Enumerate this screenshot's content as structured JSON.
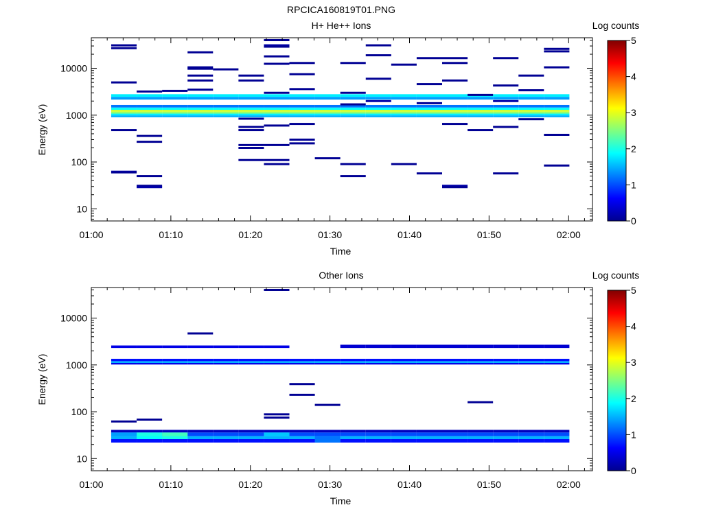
{
  "figure": {
    "title": "RPCICA160819T01.PNG"
  },
  "colorbar": {
    "label": "Log counts",
    "ticks": [
      "0",
      "1",
      "2",
      "3",
      "4",
      "5"
    ],
    "range": [
      0,
      5
    ]
  },
  "chart_data": [
    {
      "type": "heatmap",
      "title": "H+ He++ Ions",
      "xlabel": "Time",
      "ylabel": "Energy (eV)",
      "x_ticks": [
        "01:00",
        "01:10",
        "01:20",
        "01:30",
        "01:40",
        "01:50",
        "02:00"
      ],
      "xlim_minutes": [
        0,
        63
      ],
      "y_ticks": [
        "10",
        "100",
        "1000",
        "10000"
      ],
      "y_scale": "log",
      "ylim": [
        5.5,
        45000
      ],
      "time_bins": [
        [
          2.5,
          5.7
        ],
        [
          5.7,
          8.9
        ],
        [
          8.9,
          12.1
        ],
        [
          12.1,
          15.3
        ],
        [
          15.3,
          18.5
        ],
        [
          18.5,
          21.7
        ],
        [
          21.7,
          24.9
        ],
        [
          24.9,
          28.1
        ],
        [
          28.1,
          31.3
        ],
        [
          31.3,
          34.5
        ],
        [
          34.5,
          37.7
        ],
        [
          37.7,
          40.9
        ],
        [
          40.9,
          44.1
        ],
        [
          44.1,
          47.3
        ],
        [
          47.3,
          50.5
        ],
        [
          50.5,
          53.7
        ],
        [
          53.7,
          56.9
        ],
        [
          56.9,
          60.1
        ]
      ],
      "bands": [
        {
          "energy": [
            2450,
            2800
          ],
          "value": 1.8
        },
        {
          "energy": [
            2150,
            2450
          ],
          "value": 1.4
        },
        {
          "energy": [
            1450,
            1650
          ],
          "value": 1.2
        },
        {
          "energy": [
            1300,
            1450
          ],
          "value": 1.9
        },
        {
          "energy": [
            1180,
            1300
          ],
          "value": 2.9
        },
        {
          "energy": [
            1080,
            1180
          ],
          "value": 2.6
        },
        {
          "energy": [
            990,
            1080
          ],
          "value": 1.8
        },
        {
          "energy": [
            900,
            990
          ],
          "value": 1.5
        }
      ],
      "sparse": [
        [
          0,
          31000,
          0.1
        ],
        [
          0,
          27000,
          0.1
        ],
        [
          0,
          5000,
          0.1
        ],
        [
          0,
          480,
          0.1
        ],
        [
          0,
          62,
          0.2
        ],
        [
          0,
          60,
          0.1
        ],
        [
          1,
          3200,
          0.1
        ],
        [
          1,
          360,
          0.1
        ],
        [
          1,
          270,
          0.1
        ],
        [
          1,
          50,
          0.1
        ],
        [
          1,
          31,
          0.1
        ],
        [
          1,
          29,
          0.2
        ],
        [
          2,
          3300,
          0.1
        ],
        [
          3,
          22000,
          0.1
        ],
        [
          3,
          10500,
          0.1
        ],
        [
          3,
          9800,
          0.1
        ],
        [
          3,
          7000,
          0.1
        ],
        [
          3,
          5500,
          0.1
        ],
        [
          3,
          3500,
          0.1
        ],
        [
          4,
          9500,
          0.1
        ],
        [
          5,
          7000,
          0.1
        ],
        [
          5,
          5500,
          0.1
        ],
        [
          5,
          840,
          0.1
        ],
        [
          5,
          560,
          0.1
        ],
        [
          5,
          480,
          0.1
        ],
        [
          5,
          230,
          0.1
        ],
        [
          5,
          200,
          0.1
        ],
        [
          5,
          110,
          0.1
        ],
        [
          6,
          40000,
          0.1
        ],
        [
          6,
          31000,
          0.2
        ],
        [
          6,
          29000,
          0.1
        ],
        [
          6,
          18000,
          0.1
        ],
        [
          6,
          12500,
          0.1
        ],
        [
          6,
          3000,
          0.1
        ],
        [
          6,
          600,
          0.1
        ],
        [
          6,
          230,
          0.1
        ],
        [
          6,
          110,
          0.1
        ],
        [
          6,
          90,
          0.1
        ],
        [
          7,
          13000,
          0.1
        ],
        [
          7,
          7500,
          0.1
        ],
        [
          7,
          3600,
          0.1
        ],
        [
          7,
          650,
          0.1
        ],
        [
          7,
          300,
          0.1
        ],
        [
          7,
          250,
          0.1
        ],
        [
          8,
          120,
          0.1
        ],
        [
          9,
          13000,
          0.1
        ],
        [
          9,
          3000,
          0.1
        ],
        [
          9,
          1700,
          0.1
        ],
        [
          9,
          90,
          0.1
        ],
        [
          9,
          50,
          0.1
        ],
        [
          10,
          31000,
          0.1
        ],
        [
          10,
          19000,
          0.1
        ],
        [
          10,
          6000,
          0.1
        ],
        [
          10,
          2000,
          0.2
        ],
        [
          11,
          12000,
          0.1
        ],
        [
          11,
          90,
          0.1
        ],
        [
          12,
          16500,
          0.1
        ],
        [
          12,
          4600,
          0.1
        ],
        [
          12,
          1800,
          0.1
        ],
        [
          12,
          57,
          0.1
        ],
        [
          13,
          16500,
          0.1
        ],
        [
          13,
          13000,
          0.1
        ],
        [
          13,
          5500,
          0.1
        ],
        [
          13,
          650,
          0.1
        ],
        [
          13,
          31,
          0.2
        ],
        [
          13,
          29,
          0.1
        ],
        [
          14,
          2700,
          0.1
        ],
        [
          14,
          480,
          0.1
        ],
        [
          15,
          16500,
          0.1
        ],
        [
          15,
          4300,
          0.1
        ],
        [
          15,
          2000,
          0.2
        ],
        [
          15,
          560,
          0.1
        ],
        [
          15,
          57,
          0.1
        ],
        [
          16,
          7000,
          0.1
        ],
        [
          16,
          3400,
          0.1
        ],
        [
          16,
          820,
          0.1
        ],
        [
          17,
          26000,
          0.1
        ],
        [
          17,
          23000,
          0.1
        ],
        [
          17,
          10500,
          0.1
        ],
        [
          17,
          380,
          0.1
        ],
        [
          17,
          84,
          0.1
        ]
      ]
    },
    {
      "type": "heatmap",
      "title": "Other Ions",
      "xlabel": "Time",
      "ylabel": "Energy (eV)",
      "x_ticks": [
        "01:00",
        "01:10",
        "01:20",
        "01:30",
        "01:40",
        "01:50",
        "02:00"
      ],
      "xlim_minutes": [
        0,
        63
      ],
      "y_ticks": [
        "10",
        "100",
        "1000",
        "10000"
      ],
      "y_scale": "log",
      "ylim": [
        5.5,
        45000
      ],
      "time_bins": [
        [
          2.5,
          5.7
        ],
        [
          5.7,
          8.9
        ],
        [
          8.9,
          12.1
        ],
        [
          12.1,
          15.3
        ],
        [
          15.3,
          18.5
        ],
        [
          18.5,
          21.7
        ],
        [
          21.7,
          24.9
        ],
        [
          24.9,
          28.1
        ],
        [
          28.1,
          31.3
        ],
        [
          31.3,
          34.5
        ],
        [
          34.5,
          37.7
        ],
        [
          37.7,
          40.9
        ],
        [
          40.9,
          44.1
        ],
        [
          44.1,
          47.3
        ],
        [
          47.3,
          50.5
        ],
        [
          50.5,
          53.7
        ],
        [
          53.7,
          56.9
        ],
        [
          56.9,
          60.1
        ]
      ],
      "bands": [
        {
          "energy": [
            2300,
            2600
          ],
          "value": 0.5,
          "bins": [
            0,
            1,
            2,
            3,
            4,
            5,
            6
          ]
        },
        {
          "energy": [
            2300,
            2700
          ],
          "value": 0.4,
          "bins": [
            9,
            10,
            11,
            12,
            13,
            14,
            15,
            16,
            17
          ]
        },
        {
          "energy": [
            1200,
            1350
          ],
          "value": 0.7
        },
        {
          "energy": [
            1100,
            1200
          ],
          "value": 1.5
        },
        {
          "energy": [
            1020,
            1100
          ],
          "value": 0.5
        },
        {
          "energy": [
            36,
            41
          ],
          "value": 0.3
        },
        {
          "energy": [
            30,
            36
          ],
          "value": 1.0
        },
        {
          "energy": [
            26,
            30
          ],
          "value": 1.5
        },
        {
          "energy": [
            22,
            26
          ],
          "value": 0.7
        }
      ],
      "cells": [
        [
          1,
          30,
          36,
          2.0
        ],
        [
          2,
          30,
          36,
          2.2
        ],
        [
          1,
          26,
          30,
          1.9
        ],
        [
          2,
          26,
          30,
          2.0
        ],
        [
          6,
          30,
          36,
          1.6
        ],
        [
          8,
          22,
          30,
          1.2
        ],
        [
          0,
          30,
          36,
          1.4
        ]
      ],
      "sparse": [
        [
          0,
          62,
          0.1
        ],
        [
          1,
          68,
          0.1
        ],
        [
          3,
          4700,
          0.1
        ],
        [
          6,
          40000,
          0.1
        ],
        [
          6,
          88,
          0.1
        ],
        [
          6,
          75,
          0.1
        ],
        [
          7,
          390,
          0.1
        ],
        [
          7,
          230,
          0.1
        ],
        [
          8,
          140,
          0.1
        ],
        [
          14,
          160,
          0.1
        ]
      ]
    }
  ]
}
